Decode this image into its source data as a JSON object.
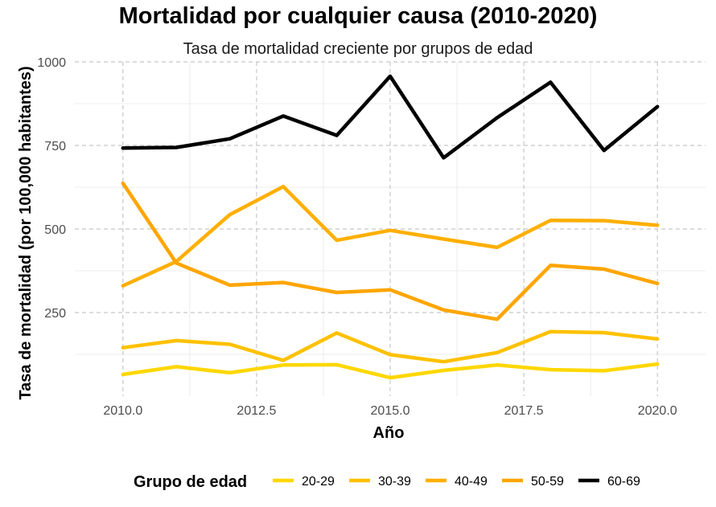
{
  "chart_data": {
    "type": "line",
    "title": "Mortalidad por cualquier causa (2010-2020)",
    "subtitle": "Tasa de mortalidad creciente por grupos de edad",
    "xlabel": "Año",
    "ylabel": "Tasa de mortalidad (por 100,000 habitantes)",
    "xlim": [
      2009.1,
      2020.9
    ],
    "ylim": [
      0,
      1000
    ],
    "x_ticks": [
      "2010.0",
      "2012.5",
      "2015.0",
      "2017.5",
      "2020.0"
    ],
    "y_ticks": [
      "250",
      "500",
      "750",
      "1000"
    ],
    "grid": true,
    "legend": {
      "title": "Grupo de edad",
      "position": "bottom"
    },
    "x": [
      2010,
      2011,
      2012,
      2013,
      2014,
      2015,
      2016,
      2017,
      2018,
      2019,
      2020
    ],
    "series": [
      {
        "name": "20-29",
        "color": "#FFD700",
        "values": [
          65,
          88,
          70,
          93,
          94,
          55,
          77,
          93,
          79,
          76,
          96
        ]
      },
      {
        "name": "30-39",
        "color": "#FFC100",
        "values": [
          145,
          166,
          155,
          107,
          189,
          124,
          103,
          130,
          193,
          190,
          171
        ]
      },
      {
        "name": "40-49",
        "color": "#FFAF00",
        "values": [
          330,
          403,
          543,
          627,
          466,
          496,
          470,
          445,
          526,
          525,
          511
        ]
      },
      {
        "name": "50-59",
        "color": "#FFA500",
        "values": [
          637,
          398,
          332,
          340,
          310,
          318,
          258,
          230,
          391,
          380,
          337
        ]
      },
      {
        "name": "60-69",
        "color": "#000000",
        "values": [
          742,
          744,
          770,
          838,
          780,
          957,
          713,
          833,
          939,
          735,
          866
        ]
      }
    ]
  }
}
